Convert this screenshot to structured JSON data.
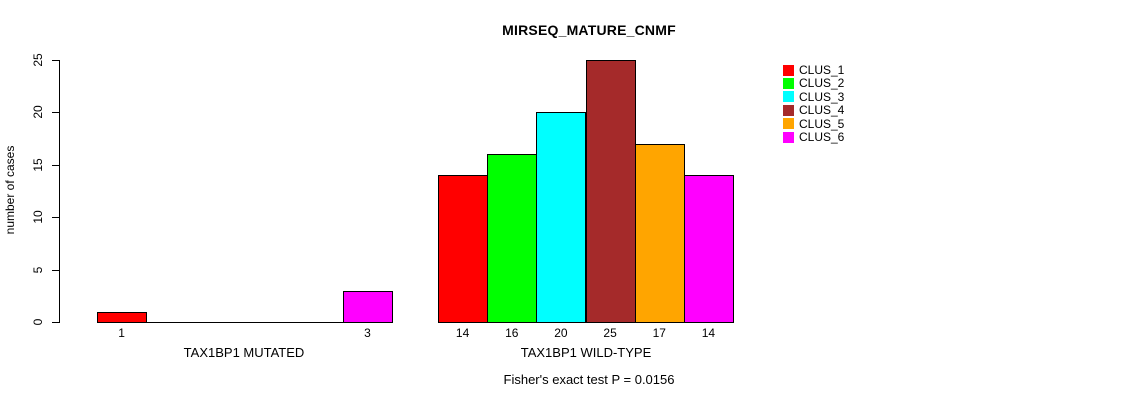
{
  "chart_data": {
    "type": "bar",
    "title": "MIRSEQ_MATURE_CNMF",
    "ylabel": "number of cases",
    "ylim": [
      0,
      25
    ],
    "yticks": [
      0,
      5,
      10,
      15,
      20,
      25
    ],
    "grid": false,
    "legend_position": "top-right",
    "clusters": [
      {
        "name": "CLUS_1",
        "color": "#FF0000"
      },
      {
        "name": "CLUS_2",
        "color": "#00FF00"
      },
      {
        "name": "CLUS_3",
        "color": "#00FFFF"
      },
      {
        "name": "CLUS_4",
        "color": "#A52A2A"
      },
      {
        "name": "CLUS_5",
        "color": "#FFA500"
      },
      {
        "name": "CLUS_6",
        "color": "#FF00FF"
      }
    ],
    "groups": [
      {
        "label": "TAX1BP1 MUTATED",
        "values": [
          1,
          0,
          0,
          0,
          0,
          3
        ],
        "value_labels": [
          "1",
          "",
          "",
          "",
          "",
          "3"
        ]
      },
      {
        "label": "TAX1BP1 WILD-TYPE",
        "values": [
          14,
          16,
          20,
          25,
          17,
          14
        ],
        "value_labels": [
          "14",
          "16",
          "20",
          "25",
          "17",
          "14"
        ]
      }
    ],
    "footnote": "Fisher's exact test P = 0.0156",
    "text_color": "#000000",
    "background_color": "#FFFFFF"
  }
}
